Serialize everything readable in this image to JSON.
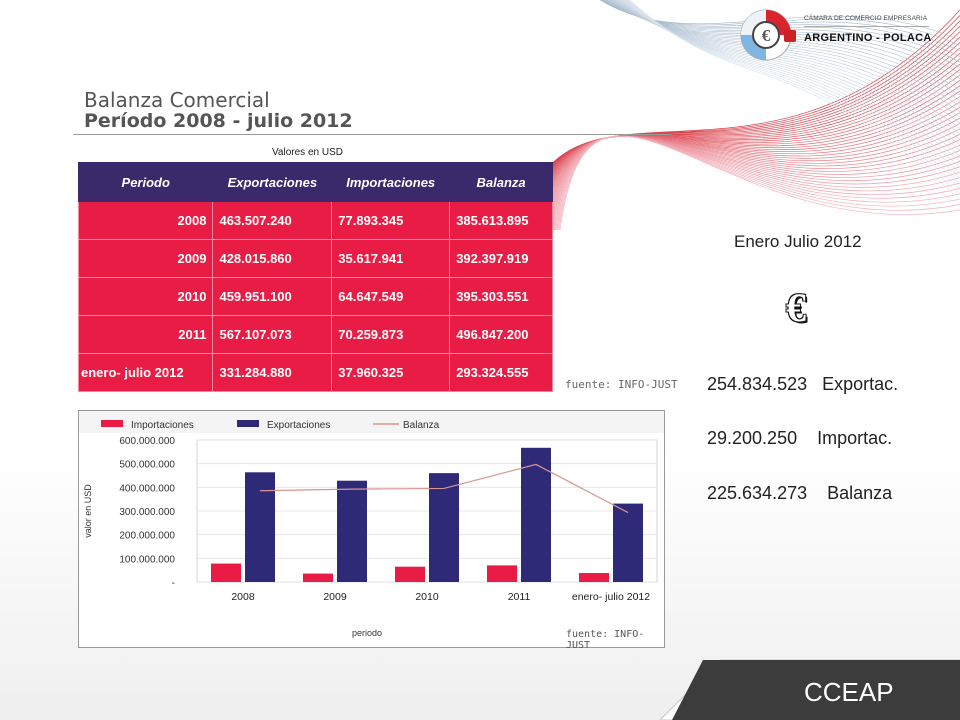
{
  "header": {
    "title_line1": "Balanza Comercial",
    "title_line2": "Período 2008 - julio 2012",
    "units_note": "Valores en USD"
  },
  "logo": {
    "line1": "CÁMARA DE COMERCIO EMPRESARIA",
    "line2": "ARGENTINO - POLACA",
    "icon": "euro-flags-logo-icon"
  },
  "table": {
    "headers": [
      "Periodo",
      "Exportaciones",
      "Importaciones",
      "Balanza"
    ],
    "rows": [
      [
        "2008",
        "463.507.240",
        "77.893.345",
        "385.613.895"
      ],
      [
        "2009",
        "428.015.860",
        "35.617.941",
        "392.397.919"
      ],
      [
        "2010",
        "459.951.100",
        "64.647.549",
        "395.303.551"
      ],
      [
        "2011",
        "567.107.073",
        "70.259.873",
        "496.847.200"
      ],
      [
        "enero- julio 2012",
        "331.284.880",
        "37.960.325",
        "293.324.555"
      ]
    ],
    "source": "fuente: INFO-JUST"
  },
  "chart_data": {
    "type": "bar",
    "categories": [
      "2008",
      "2009",
      "2010",
      "2011",
      "enero- julio 2012"
    ],
    "series": [
      {
        "name": "Importaciones",
        "kind": "bar",
        "color": "#e81c44",
        "values": [
          77893345,
          35617941,
          64647549,
          70259873,
          37960325
        ]
      },
      {
        "name": "Exportaciones",
        "kind": "bar",
        "color": "#2e2a78",
        "values": [
          463507240,
          428015860,
          459951100,
          567107073,
          331284880
        ]
      },
      {
        "name": "Balanza",
        "kind": "line",
        "color": "#d9958f",
        "values": [
          385613895,
          392397919,
          395303551,
          496847200,
          293324555
        ]
      }
    ],
    "yticks": [
      "600.000.000",
      "500.000.000",
      "400.000.000",
      "300.000.000",
      "200.000.000",
      "100.000.000",
      "-"
    ],
    "ylim": [
      0,
      600000000
    ],
    "xlabel": "periodo",
    "ylabel": "valor en USD",
    "legend_position": "top",
    "grid": true,
    "source": "fuente: INFO-JUST"
  },
  "summary": {
    "title": "Enero Julio 2012",
    "currency_symbol": "€",
    "lines": [
      {
        "value": "254.834.523",
        "label": "Exportac."
      },
      {
        "value": "29.200.250",
        "label": "Importac."
      },
      {
        "value": "225.634.273",
        "label": "Balanza"
      }
    ]
  },
  "footer": {
    "label": "CCEAP"
  },
  "colors": {
    "export_bar": "#2e2a78",
    "import_bar": "#e81c44",
    "table_header": "#3b2a6b",
    "table_row": "#e81c44",
    "footer": "#3c3c3c"
  }
}
